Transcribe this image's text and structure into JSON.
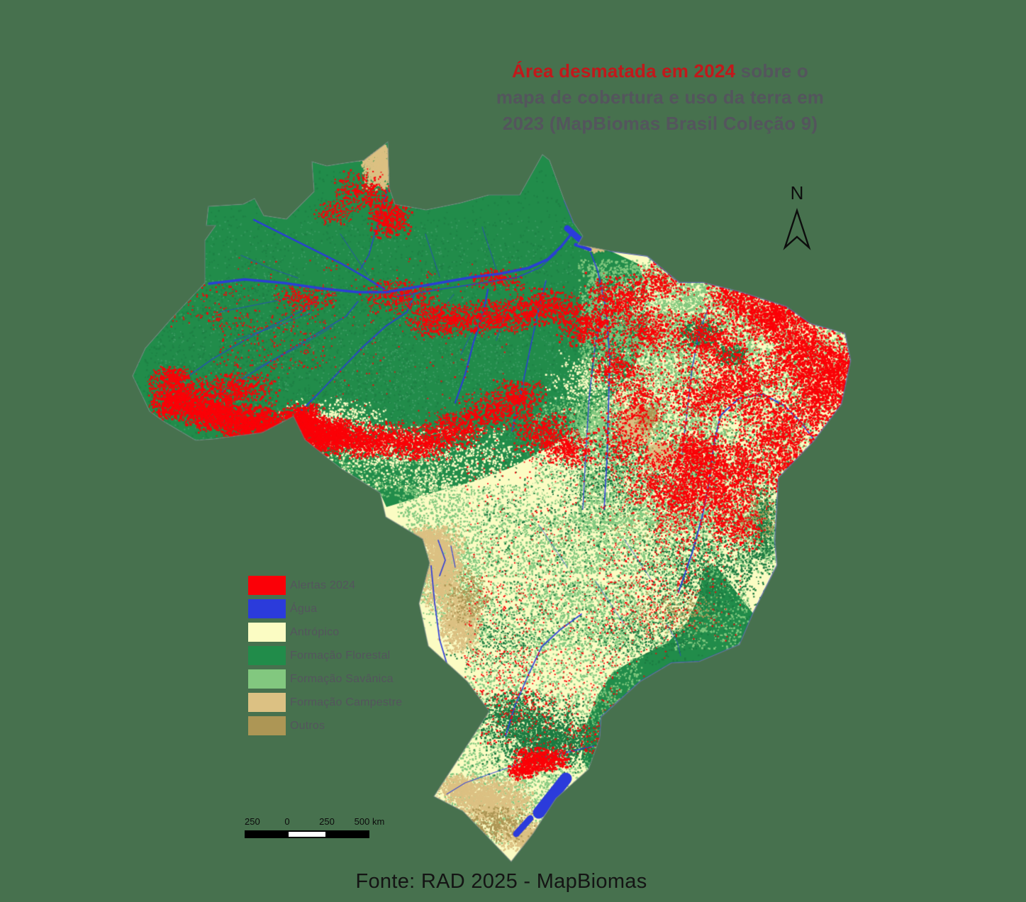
{
  "background_color": "#47714e",
  "title": {
    "highlight": "Área desmatada em 2024",
    "after_highlight": " sobre o",
    "line2": "mapa de cobertura e uso da terra em",
    "line3": "2023 (MapBiomas Brasil Coleção 9)",
    "highlight_color": "#c2181b",
    "text_color": "#54555d"
  },
  "north_arrow": {
    "label": "N"
  },
  "legend": {
    "label_color": "#54555d",
    "items": [
      {
        "label": "Alertas 2024",
        "color": "#fb0007"
      },
      {
        "label": "Água",
        "color": "#2b3bdb"
      },
      {
        "label": "Antrópico",
        "color": "#fbfcc3"
      },
      {
        "label": "Formação Florestal",
        "color": "#218c4a"
      },
      {
        "label": "Formação Savânica",
        "color": "#82c87f"
      },
      {
        "label": "Formação Campestre",
        "color": "#dcc183"
      },
      {
        "label": "Outros",
        "color": "#ad9655"
      }
    ]
  },
  "scale_bar": {
    "labels": [
      "250",
      "0",
      "250",
      "500 km"
    ]
  },
  "source_note": "Fonte: RAD 2025 - MapBiomas"
}
